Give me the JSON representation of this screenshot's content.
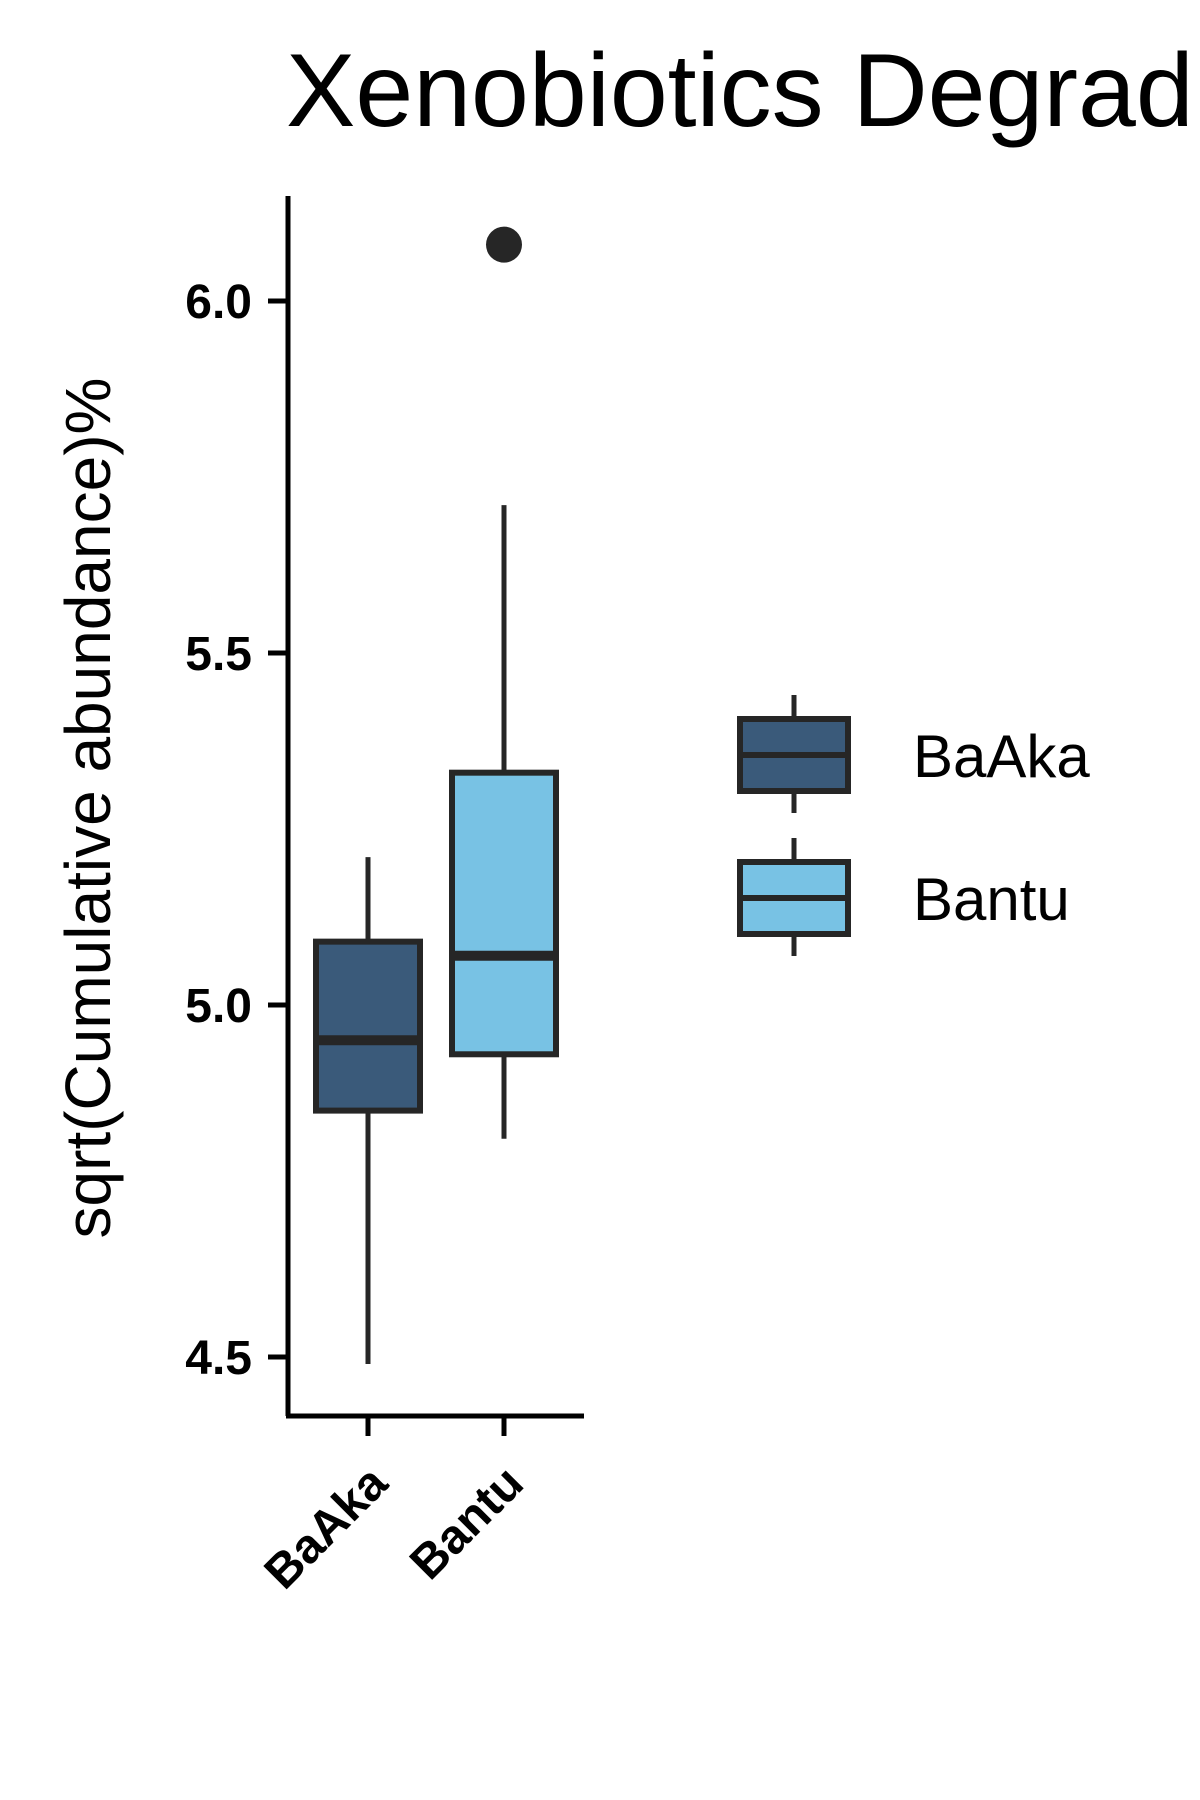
{
  "chart_data": {
    "type": "boxplot",
    "title": "Xenobiotics Degrad",
    "xlabel": "",
    "ylabel": "sqrt(Cumulative abundance)%",
    "ylim": [
      4.42,
      6.16
    ],
    "yticks": [
      4.5,
      5.0,
      5.5,
      6.0
    ],
    "ytick_labels": [
      "4.5",
      "5.0",
      "5.5",
      "6.0"
    ],
    "categories": [
      "BaAka",
      "Bantu"
    ],
    "groups": [
      {
        "name": "BaAka",
        "color": "#3a5a7a",
        "whisker_low": 4.49,
        "q1": 4.85,
        "median": 4.95,
        "q3": 5.09,
        "whisker_high": 5.21,
        "outliers": []
      },
      {
        "name": "Bantu",
        "color": "#78c2e4",
        "whisker_low": 4.81,
        "q1": 4.93,
        "median": 5.07,
        "q3": 5.33,
        "whisker_high": 5.71,
        "outliers": [
          6.08
        ]
      }
    ],
    "legend": {
      "position": "right",
      "entries": [
        "BaAka",
        "Bantu"
      ]
    },
    "grid": false,
    "colors": {
      "line": "#262626",
      "axis": "#000000"
    }
  }
}
